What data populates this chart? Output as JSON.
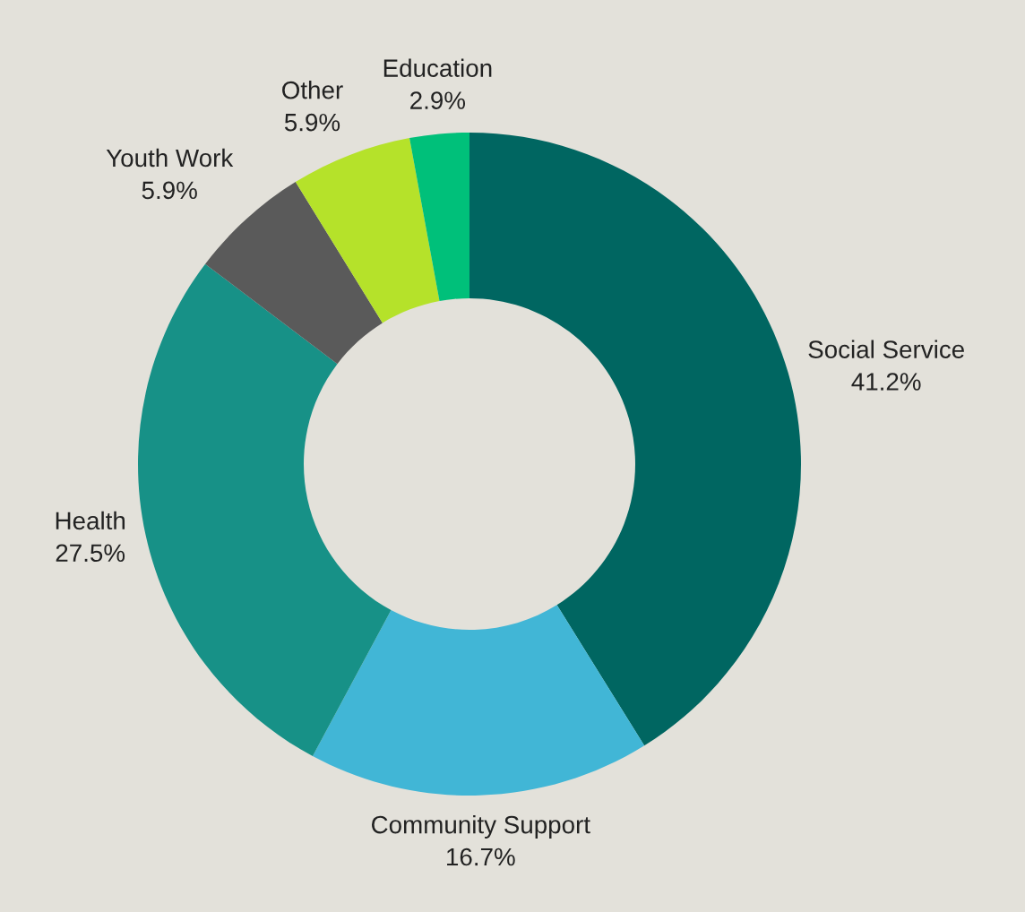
{
  "chart_data": {
    "type": "donut",
    "categories": [
      "Social Service",
      "Community Support",
      "Health",
      "Youth Work",
      "Other",
      "Education"
    ],
    "values": [
      41.2,
      16.7,
      27.5,
      5.9,
      5.9,
      2.9
    ],
    "value_labels": [
      "41.2%",
      "16.7%",
      "27.5%",
      "5.9%",
      "5.9%",
      "2.9%"
    ],
    "colors": [
      "#006661",
      "#41b6d6",
      "#179187",
      "#5a5a5a",
      "#b5e22a",
      "#00c07a"
    ],
    "legend": false
  }
}
